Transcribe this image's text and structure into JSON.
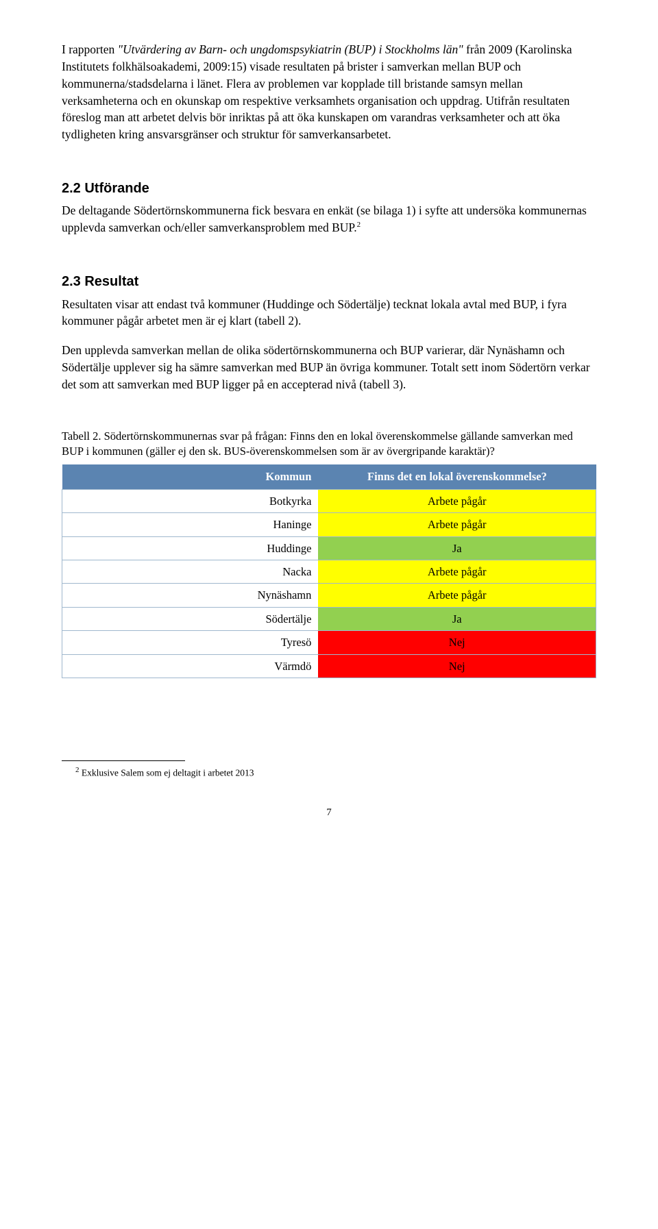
{
  "para1": {
    "pre": "I rapporten ",
    "italic": "\"Utvärdering av Barn- och ungdomspsykiatrin (BUP) i Stockholms län\"",
    "post": " från 2009 (Karolinska Institutets folkhälsoakademi, 2009:15) visade resultaten på brister i samverkan mellan BUP och kommunerna/stadsdelarna i länet. Flera av problemen var kopplade till bristande samsyn mellan verksamheterna och en okunskap om respektive verksamhets organisation och uppdrag. Utifrån resultaten föreslog man att arbetet delvis bör inriktas på att öka kunskapen om varandras verksamheter och att öka tydligheten kring ansvarsgränser och struktur för samverkansarbetet."
  },
  "sec22": {
    "heading": "2.2 Utförande",
    "text": "De deltagande Södertörnskommunerna fick besvara en enkät (se bilaga 1) i syfte att undersöka kommunernas upplevda samverkan och/eller samverkansproblem med BUP.",
    "sup": "2"
  },
  "sec23": {
    "heading": "2.3 Resultat",
    "p1": "Resultaten visar att endast två kommuner (Huddinge och Södertälje) tecknat lokala avtal med BUP, i fyra kommuner pågår arbetet men är ej klart (tabell 2).",
    "p2": "Den upplevda samverkan mellan de olika södertörnskommunerna och BUP varierar, där Nynäshamn och Södertälje upplever sig ha sämre samverkan med BUP än övriga kommuner. Totalt sett inom Södertörn verkar det som att samverkan med BUP ligger på en accepterad nivå (tabell 3)."
  },
  "table2": {
    "caption": "Tabell 2. Södertörnskommunernas svar på frågan: Finns den en lokal överenskommelse gällande samverkan med BUP i kommunen (gäller ej den sk. BUS-överenskommelsen som är av övergripande karaktär)?",
    "header_bg": "#5b84b1",
    "col_kommun": "Kommun",
    "col_question": "Finns det en lokal överenskommelse?",
    "colors": {
      "yellow": "#ffff00",
      "green": "#92d050",
      "red": "#ff0000"
    },
    "rows": [
      {
        "kommun": "Botkyrka",
        "answer": "Arbete pågår",
        "color": "yellow"
      },
      {
        "kommun": "Haninge",
        "answer": "Arbete pågår",
        "color": "yellow"
      },
      {
        "kommun": "Huddinge",
        "answer": "Ja",
        "color": "green"
      },
      {
        "kommun": "Nacka",
        "answer": "Arbete pågår",
        "color": "yellow"
      },
      {
        "kommun": "Nynäshamn",
        "answer": "Arbete pågår",
        "color": "yellow"
      },
      {
        "kommun": "Södertälje",
        "answer": "Ja",
        "color": "green"
      },
      {
        "kommun": "Tyresö",
        "answer": "Nej",
        "color": "red"
      },
      {
        "kommun": "Värmdö",
        "answer": "Nej",
        "color": "red"
      }
    ]
  },
  "footnote": {
    "marker": "2",
    "text": " Exklusive Salem som ej deltagit i arbetet 2013"
  },
  "page_number": "7"
}
